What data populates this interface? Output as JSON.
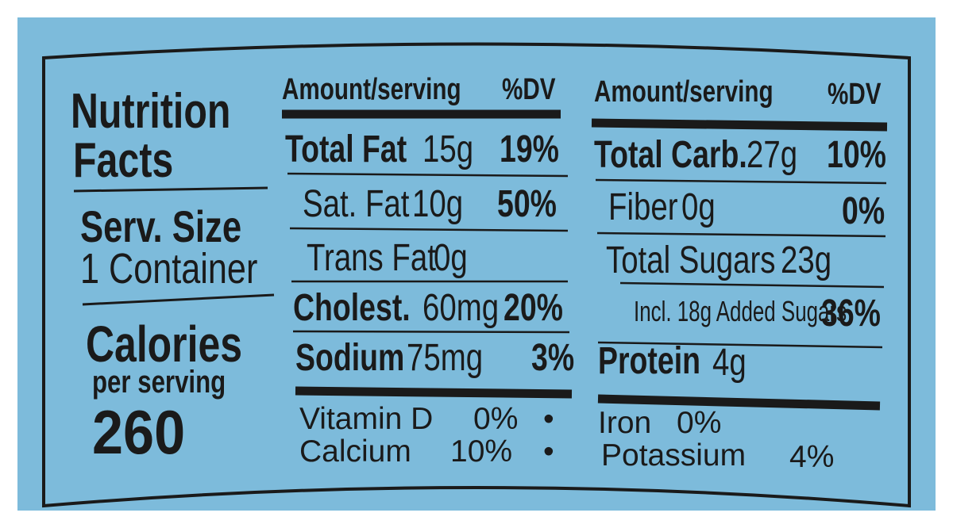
{
  "colors": {
    "background": "#7dbbdb",
    "ink": "#1a1a1a"
  },
  "left": {
    "title_line1": "Nutrition",
    "title_line2": "Facts",
    "serving_label": "Serv. Size",
    "serving_value": "1 Container",
    "calories_label": "Calories",
    "calories_sub": "per serving",
    "calories_value": "260"
  },
  "col1": {
    "header_amount": "Amount/serving",
    "header_dv": "%DV",
    "rows": [
      {
        "name": "Total Fat",
        "amount": "15g",
        "dv": "19%"
      },
      {
        "name": "Sat. Fat",
        "amount": "10g",
        "dv": "50%"
      },
      {
        "name": "Trans Fat",
        "amount": "0g",
        "dv": ""
      },
      {
        "name": "Cholest.",
        "amount": "60mg",
        "dv": "20%"
      },
      {
        "name": "Sodium",
        "amount": "75mg",
        "dv": "3%"
      }
    ],
    "vitamins": [
      {
        "name": "Vitamin D",
        "value": "0%"
      },
      {
        "name": "Calcium",
        "value": "10%"
      }
    ],
    "bullet": "•"
  },
  "col2": {
    "header_amount": "Amount/serving",
    "header_dv": "%DV",
    "rows": [
      {
        "name": "Total Carb.",
        "amount": "27g",
        "dv": "10%"
      },
      {
        "name": "Fiber",
        "amount": "0g",
        "dv": "0%"
      },
      {
        "name": "Total Sugars",
        "amount": "23g",
        "dv": ""
      },
      {
        "name": "Incl. 18g Added Sugars",
        "amount": "",
        "dv": "36%"
      },
      {
        "name": "Protein",
        "amount": "4g",
        "dv": ""
      }
    ],
    "minerals": [
      {
        "name": "Iron",
        "value": "0%"
      },
      {
        "name": "Potassium",
        "value": "4%"
      }
    ]
  }
}
